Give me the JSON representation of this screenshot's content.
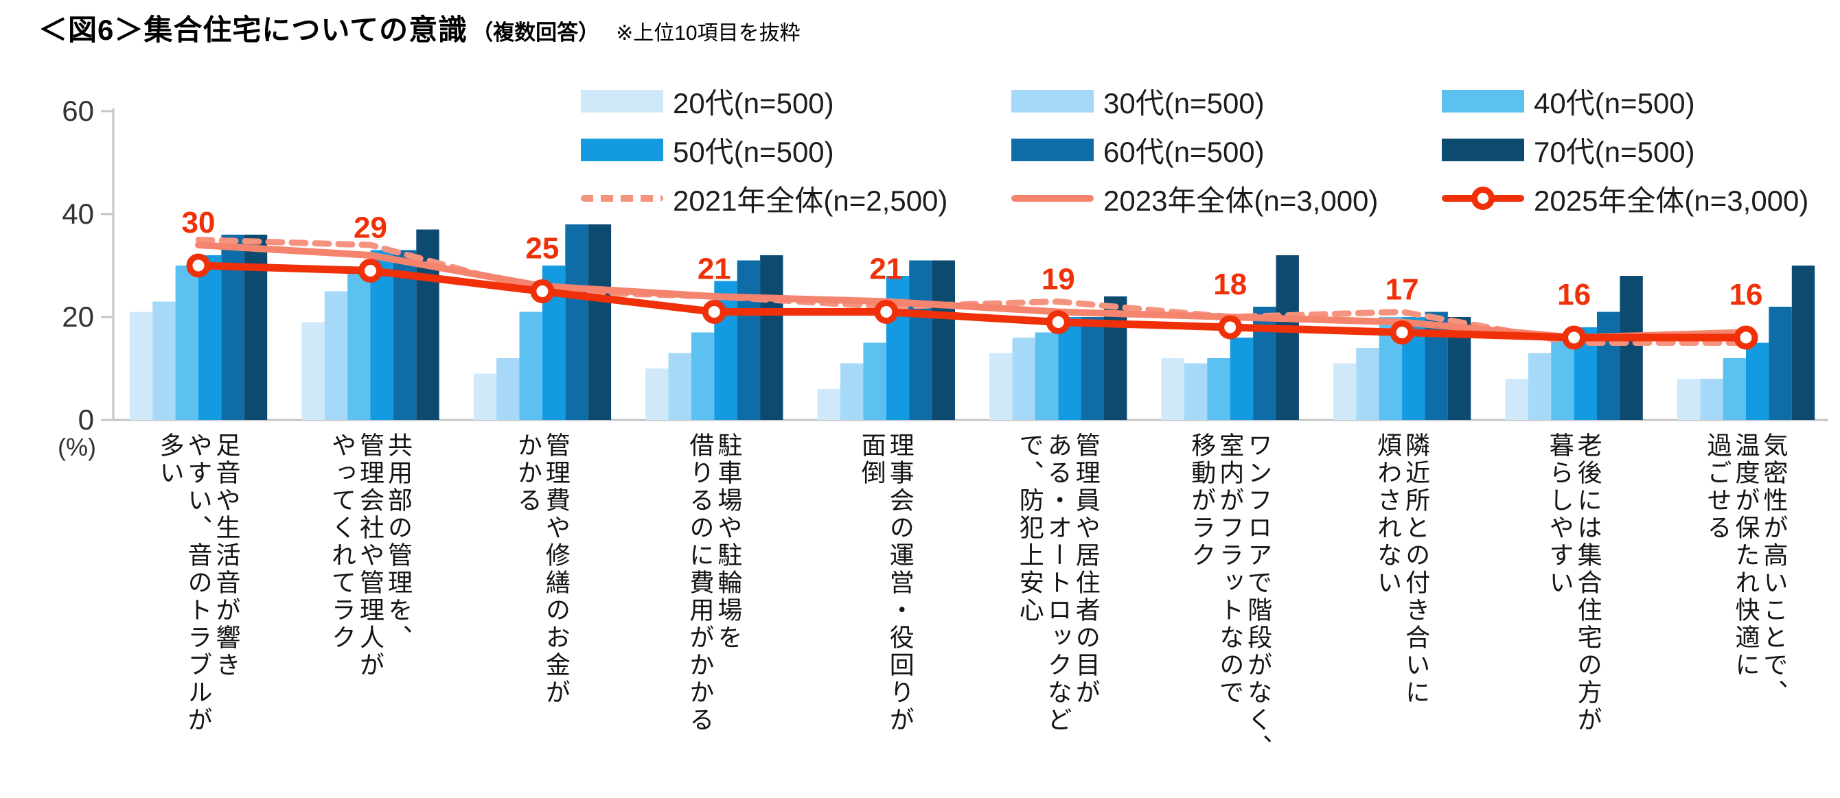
{
  "title": {
    "main": "＜図6＞集合住宅についての意識",
    "sub": "（複数回答）",
    "note": "※上位10項目を抜粋"
  },
  "y_axis": {
    "ticks": [
      60,
      40,
      20,
      0
    ],
    "unit": "(%)",
    "max": 60
  },
  "colors": {
    "age_bars": [
      "#cfe9fb",
      "#a5d9f7",
      "#5cc0f1",
      "#149ae1",
      "#0e6ca7",
      "#0c4a70"
    ],
    "line_2021": "#f5937f",
    "line_2023": "#f5846e",
    "line_2025": "#f03008",
    "axis": "#c4c4c4",
    "data_label": "#f03008"
  },
  "legend": {
    "items": [
      {
        "type": "bar",
        "label": "20代(n=500)",
        "color": "#cfe9fb"
      },
      {
        "type": "bar",
        "label": "30代(n=500)",
        "color": "#a5d9f7"
      },
      {
        "type": "bar",
        "label": "40代(n=500)",
        "color": "#5cc0f1"
      },
      {
        "type": "bar",
        "label": "50代(n=500)",
        "color": "#149ae1"
      },
      {
        "type": "bar",
        "label": "60代(n=500)",
        "color": "#0e6ca7"
      },
      {
        "type": "bar",
        "label": "70代(n=500)",
        "color": "#0c4a70"
      },
      {
        "type": "line-dashed",
        "label": "2021年全体(n=2,500)",
        "color": "#f5937f"
      },
      {
        "type": "line-solid",
        "label": "2023年全体(n=3,000)",
        "color": "#f5846e"
      },
      {
        "type": "line-marker",
        "label": "2025年全体(n=3,000)",
        "color": "#f03008"
      }
    ]
  },
  "chart_data": {
    "type": "bar+line",
    "title": "集合住宅についての意識（複数回答）上位10項目",
    "ylabel": "(%)",
    "ylim": [
      0,
      60
    ],
    "grid": false,
    "legend_position": "top",
    "categories": [
      {
        "label": "足音や生活音が響きやすい、音のトラブルが多い",
        "lines": [
          "足音や生活音が響き",
          "やすい、音のトラブルが",
          "多い"
        ]
      },
      {
        "label": "共用部の管理を、管理会社や管理人がやってくれてラク",
        "lines": [
          "共用部の管理を、",
          "管理会社や管理人が",
          "やってくれてラク"
        ]
      },
      {
        "label": "管理費や修繕のお金がかかる",
        "lines": [
          "管理費や修繕のお金が",
          "かかる"
        ]
      },
      {
        "label": "駐車場や駐輪場を借りるのに費用がかかる",
        "lines": [
          "駐車場や駐輪場を",
          "借りるのに費用がかかる"
        ]
      },
      {
        "label": "理事会の運営・役回りが面倒",
        "lines": [
          "理事会の運営・役回りが",
          "面倒"
        ]
      },
      {
        "label": "管理員や居住者の目がある・オートロックなどで、防犯上安心",
        "lines": [
          "管理員や居住者の目が",
          "ある・オートロックなど",
          "で、防犯上安心"
        ]
      },
      {
        "label": "ワンフロアで階段がなく、室内がフラットなので移動がラク",
        "lines": [
          "ワンフロアで階段がなく、",
          "室内がフラットなので",
          "移動がラク"
        ]
      },
      {
        "label": "隣近所との付き合いに煩わされない",
        "lines": [
          "隣近所との付き合いに",
          "煩わされない"
        ]
      },
      {
        "label": "老後には集合住宅の方が暮らしやすい",
        "lines": [
          "老後には集合住宅の方が",
          "暮らしやすい"
        ]
      },
      {
        "label": "気密性が高いことで、温度が保たれ快適に過ごせる",
        "lines": [
          "気密性が高いことで、",
          "温度が保たれ快適に",
          "過ごせる"
        ]
      }
    ],
    "bar_series": [
      {
        "name": "20代(n=500)",
        "color": "#cfe9fb",
        "values": [
          21,
          19,
          9,
          10,
          6,
          13,
          12,
          11,
          8,
          8
        ]
      },
      {
        "name": "30代(n=500)",
        "color": "#a5d9f7",
        "values": [
          23,
          25,
          12,
          13,
          11,
          16,
          11,
          14,
          13,
          8
        ]
      },
      {
        "name": "40代(n=500)",
        "color": "#5cc0f1",
        "values": [
          30,
          29,
          21,
          17,
          15,
          17,
          12,
          20,
          16,
          12
        ]
      },
      {
        "name": "50代(n=500)",
        "color": "#149ae1",
        "values": [
          32,
          33,
          30,
          27,
          28,
          20,
          16,
          20,
          18,
          15
        ]
      },
      {
        "name": "60代(n=500)",
        "color": "#0e6ca7",
        "values": [
          36,
          33,
          38,
          31,
          31,
          20,
          22,
          21,
          21,
          22
        ]
      },
      {
        "name": "70代(n=500)",
        "color": "#0c4a70",
        "values": [
          36,
          37,
          38,
          32,
          31,
          24,
          32,
          20,
          28,
          30
        ]
      }
    ],
    "line_series": [
      {
        "name": "2021年全体(n=2,500)",
        "color": "#f5937f",
        "dashed": true,
        "marker": false,
        "data_labels": false,
        "values": [
          35,
          34,
          25,
          24,
          22,
          23,
          20,
          21,
          15,
          15
        ]
      },
      {
        "name": "2023年全体(n=3,000)",
        "color": "#f5846e",
        "dashed": false,
        "marker": false,
        "data_labels": false,
        "values": [
          34,
          32,
          26,
          24,
          23,
          21,
          20,
          19,
          16,
          17
        ]
      },
      {
        "name": "2025年全体(n=3,000)",
        "color": "#f03008",
        "dashed": false,
        "marker": true,
        "data_labels": true,
        "values": [
          30,
          29,
          25,
          21,
          21,
          19,
          18,
          17,
          16,
          16
        ]
      }
    ]
  }
}
